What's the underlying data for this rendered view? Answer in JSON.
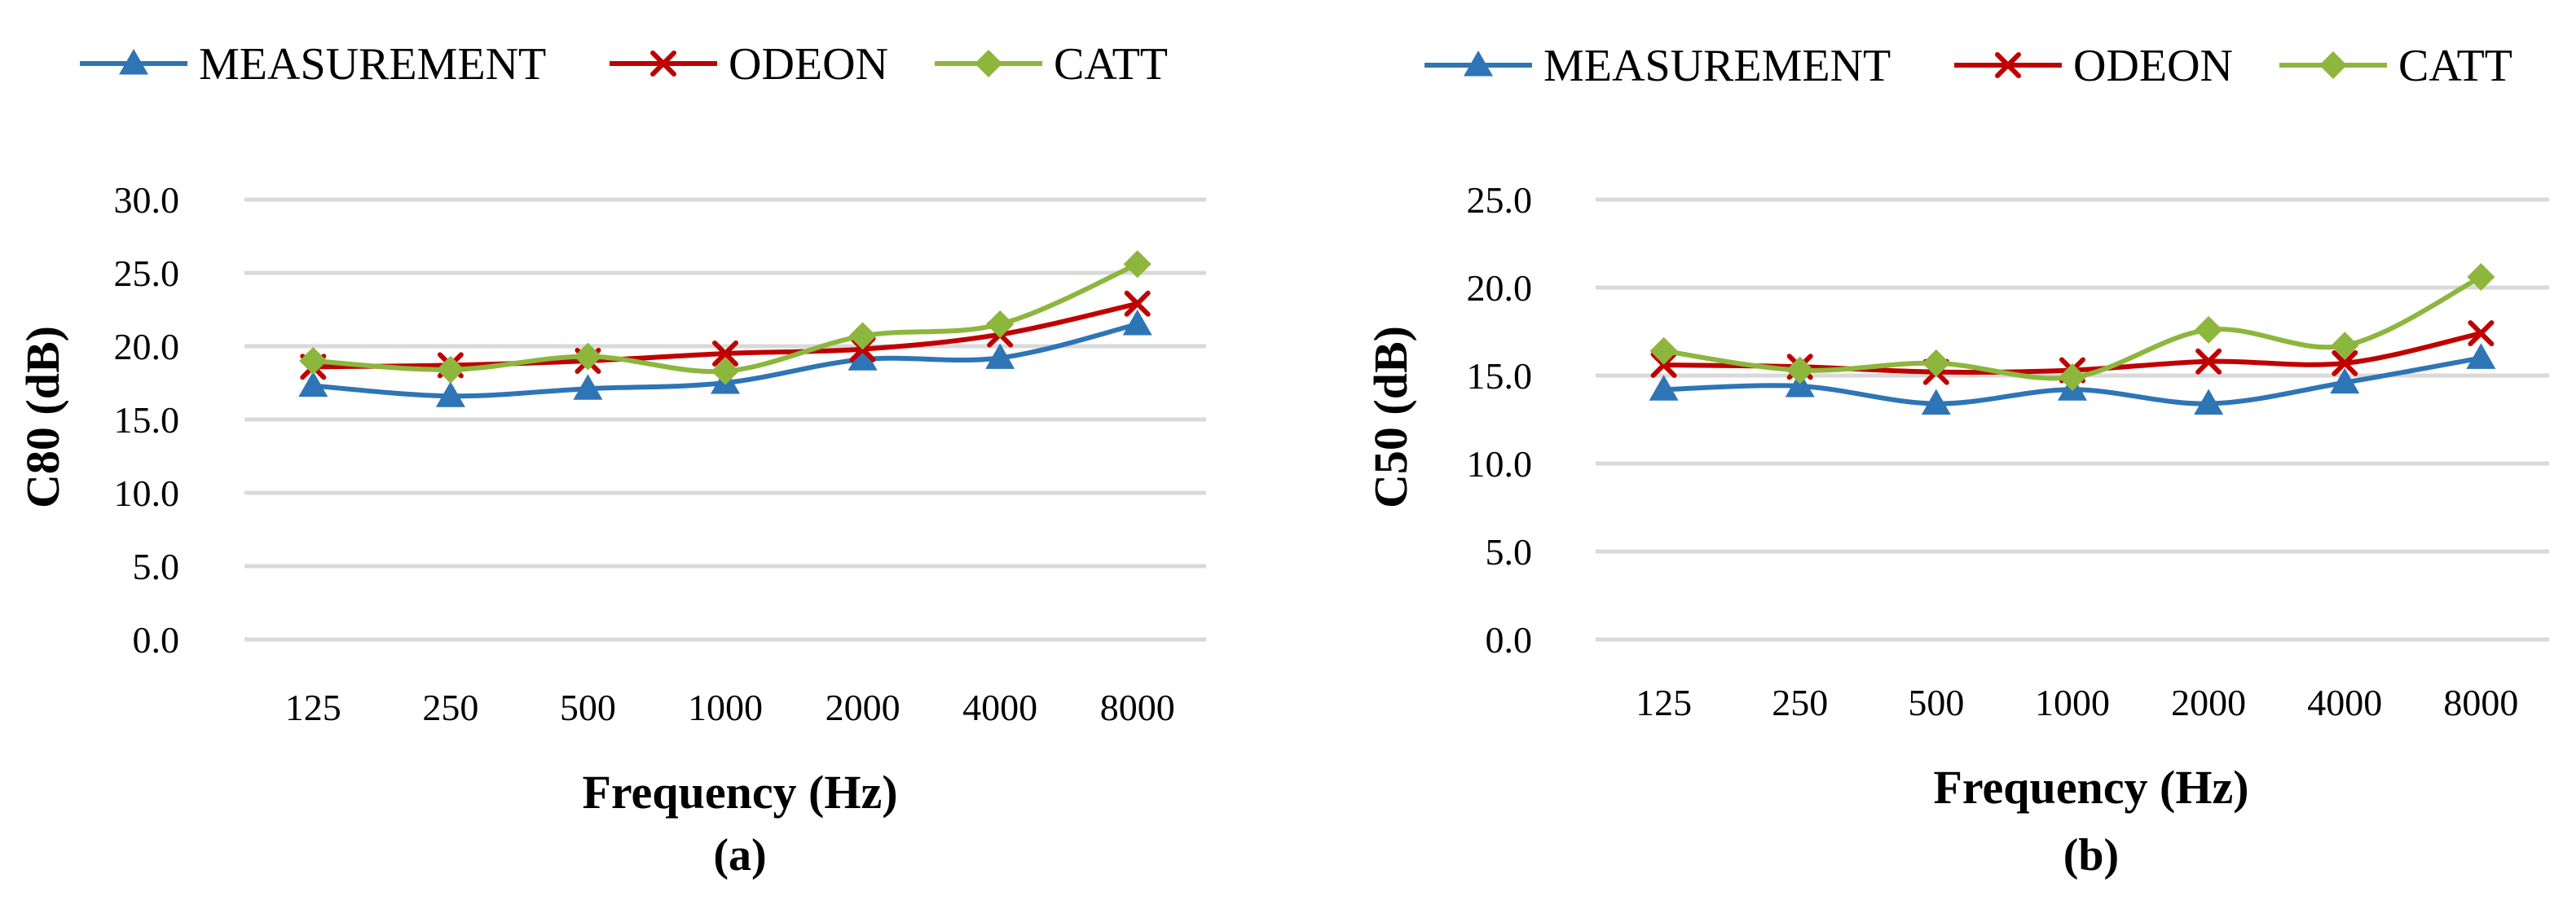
{
  "figure": {
    "panels": [
      "(a)",
      "(b)"
    ]
  },
  "colors": {
    "measurement": "#2E75B6",
    "odeon": "#C00000",
    "catt": "#8DB63C",
    "grid": "#D9D9D9"
  },
  "chart_data": [
    {
      "type": "line",
      "panel_label": "(a)",
      "xlabel": "Frequency (Hz)",
      "ylabel": "C80 (dB)",
      "categories": [
        "125",
        "250",
        "500",
        "1000",
        "2000",
        "4000",
        "8000"
      ],
      "ylim": [
        0,
        30
      ],
      "yticks": [
        "0.0",
        "5.0",
        "10.0",
        "15.0",
        "20.0",
        "25.0",
        "30.0"
      ],
      "grid": true,
      "legend_position": "top",
      "series": [
        {
          "name": "MEASUREMENT",
          "marker": "triangle",
          "color_key": "measurement",
          "values": [
            17.3,
            16.6,
            17.1,
            17.5,
            19.1,
            19.2,
            21.5
          ]
        },
        {
          "name": "ODEON",
          "marker": "x",
          "color_key": "odeon",
          "values": [
            18.6,
            18.7,
            19.0,
            19.5,
            19.8,
            20.8,
            22.9
          ]
        },
        {
          "name": "CATT",
          "marker": "diamond",
          "color_key": "catt",
          "values": [
            19.0,
            18.4,
            19.3,
            18.3,
            20.7,
            21.5,
            25.6
          ]
        }
      ]
    },
    {
      "type": "line",
      "panel_label": "(b)",
      "xlabel": "Frequency (Hz)",
      "ylabel": "C50 (dB)",
      "categories": [
        "125",
        "250",
        "500",
        "1000",
        "2000",
        "4000",
        "8000"
      ],
      "ylim": [
        0,
        25
      ],
      "yticks": [
        "0.0",
        "5.0",
        "10.0",
        "15.0",
        "20.0",
        "25.0"
      ],
      "grid": true,
      "legend_position": "top",
      "series": [
        {
          "name": "MEASUREMENT",
          "marker": "triangle",
          "color_key": "measurement",
          "values": [
            14.2,
            14.4,
            13.4,
            14.2,
            13.4,
            14.6,
            16.0
          ]
        },
        {
          "name": "ODEON",
          "marker": "x",
          "color_key": "odeon",
          "values": [
            15.6,
            15.5,
            15.2,
            15.3,
            15.8,
            15.7,
            17.4
          ]
        },
        {
          "name": "CATT",
          "marker": "diamond",
          "color_key": "catt",
          "values": [
            16.4,
            15.3,
            15.7,
            14.9,
            17.6,
            16.7,
            20.6
          ]
        }
      ]
    }
  ]
}
